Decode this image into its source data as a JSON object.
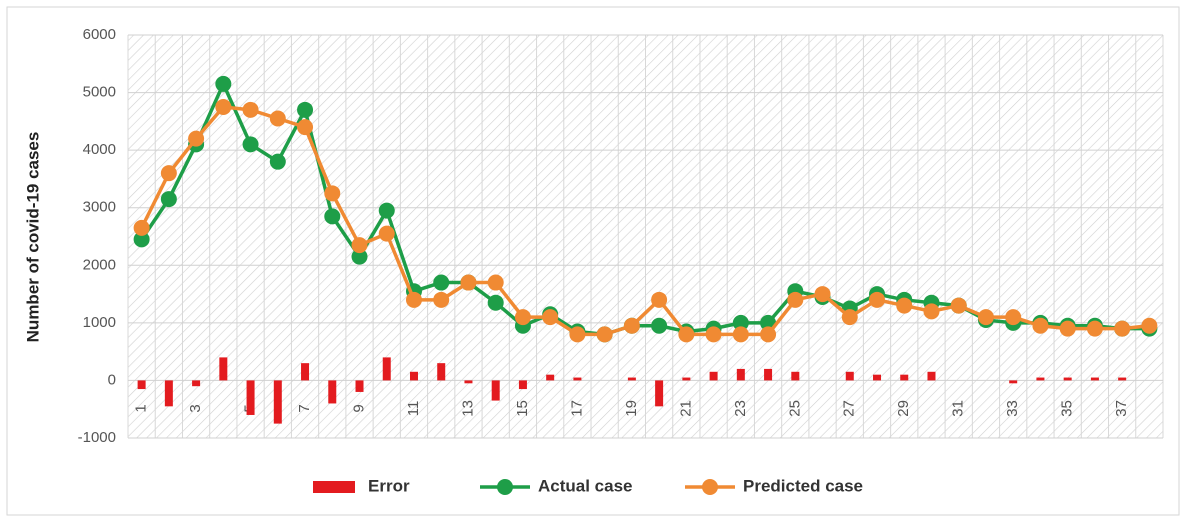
{
  "chart_data": {
    "type": "line",
    "y_label": "Number of covid-19 cases",
    "categories": [
      "1",
      null,
      "3",
      null,
      "5",
      null,
      "7",
      null,
      "9",
      null,
      "11",
      null,
      "13",
      null,
      "15",
      null,
      "17",
      null,
      "19",
      null,
      "21",
      null,
      "23",
      null,
      "25",
      null,
      "27",
      null,
      "29",
      null,
      "31",
      null,
      "33",
      null,
      "35",
      null,
      "37",
      null
    ],
    "series": [
      {
        "name": "Error",
        "type": "bar",
        "color": "#e31b1f",
        "values": [
          -150,
          -450,
          -100,
          400,
          -600,
          -750,
          300,
          -400,
          -200,
          400,
          150,
          300,
          -50,
          -350,
          -150,
          100,
          50,
          0,
          50,
          -450,
          50,
          150,
          200,
          200,
          150,
          0,
          150,
          100,
          100,
          150,
          0,
          0,
          -50,
          50,
          50,
          50,
          50,
          0
        ]
      },
      {
        "name": "Actual case",
        "type": "line",
        "color": "#1e9e48",
        "values": [
          2450,
          3150,
          4100,
          5150,
          4100,
          3800,
          4700,
          2850,
          2150,
          2950,
          1550,
          1700,
          1700,
          1350,
          950,
          1150,
          850,
          800,
          950,
          950,
          850,
          900,
          1000,
          1000,
          1550,
          1450,
          1250,
          1500,
          1400,
          1350,
          1300,
          1050,
          1000,
          1000,
          950,
          950,
          900,
          900
        ]
      },
      {
        "name": "Predicted case",
        "type": "line",
        "color": "#f08a33",
        "values": [
          2650,
          3600,
          4200,
          4750,
          4700,
          4550,
          4400,
          3250,
          2350,
          2550,
          1400,
          1400,
          1700,
          1700,
          1100,
          1100,
          800,
          800,
          950,
          1400,
          800,
          800,
          800,
          800,
          1400,
          1500,
          1100,
          1400,
          1300,
          1200,
          1300,
          1100,
          1100,
          950,
          900,
          900,
          900,
          950
        ]
      }
    ],
    "ylim": [
      -1000,
      6000
    ],
    "yticks": [
      -1000,
      0,
      1000,
      2000,
      3000,
      4000,
      5000,
      6000
    ],
    "grid": true,
    "legend": "bottom"
  }
}
